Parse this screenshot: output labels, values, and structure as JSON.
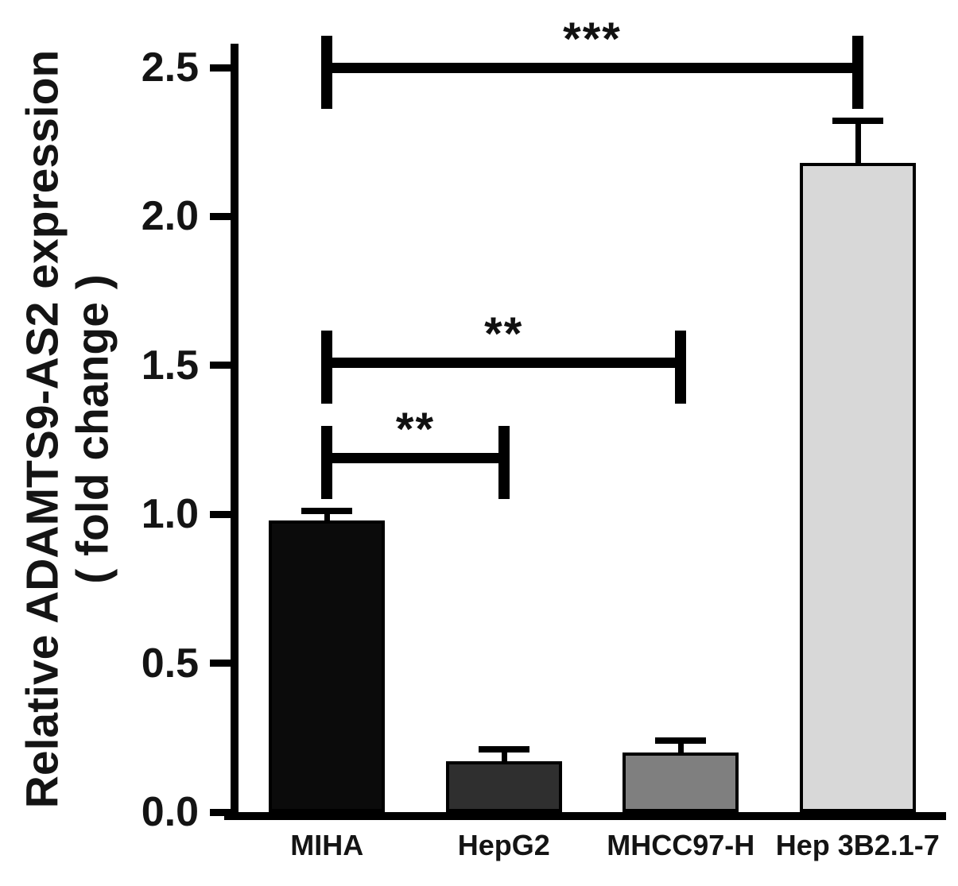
{
  "chart_data": {
    "type": "bar",
    "title": "",
    "ylabel_line1": "Relative ADAMTS9-AS2 expression",
    "ylabel_line2": "( fold change )",
    "xlabel": "",
    "categories": [
      "MIHA",
      "HepG2",
      "MHCC97-H",
      "Hep 3B2.1-7"
    ],
    "values": [
      0.98,
      0.17,
      0.2,
      2.18
    ],
    "errors": [
      0.03,
      0.04,
      0.04,
      0.14
    ],
    "bar_colors": [
      "#0b0b0b",
      "#2f2f2f",
      "#7f7f7f",
      "#d8d8d8"
    ],
    "bar_border_color": "#000000",
    "axis_color": "#000000",
    "ylim": [
      0,
      2.5
    ],
    "yticks": [
      "0.0",
      "0.5",
      "1.0",
      "1.5",
      "2.0",
      "2.5"
    ],
    "ytick_values": [
      0,
      0.5,
      1.0,
      1.5,
      2.0,
      2.5
    ],
    "grid": false,
    "legend": "none",
    "annotations": [
      {
        "label": "***",
        "from_category": "MIHA",
        "to_category": "Hep 3B2.1-7",
        "from_index": 0,
        "to_index": 3,
        "y": 2.5
      },
      {
        "label": "**",
        "from_category": "MIHA",
        "to_category": "MHCC97-H",
        "from_index": 0,
        "to_index": 2,
        "y": 1.51
      },
      {
        "label": "**",
        "from_category": "MIHA",
        "to_category": "HepG2",
        "from_index": 0,
        "to_index": 1,
        "y": 1.19
      }
    ]
  }
}
